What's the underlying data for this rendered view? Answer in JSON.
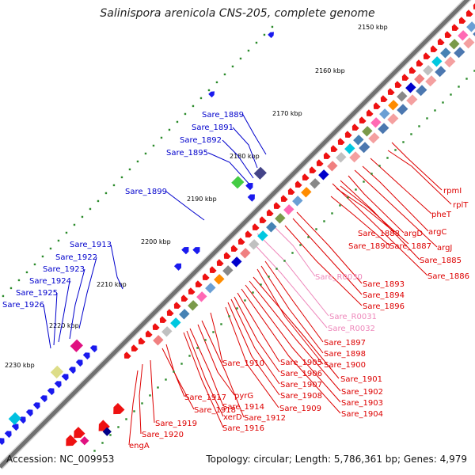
{
  "title": "Salinispora arenicola CNS-205, complete genome",
  "footer": {
    "accession": "Accession: NC_009953",
    "summary": "Topology: circular; Length: 5,786,361 bp; Genes: 4,979"
  },
  "colors": {
    "plus_label": "#0000cc",
    "minus_label": "#dd0000",
    "rna_label": "#ee88bb",
    "backbone": "#777777",
    "tick": "#228822"
  },
  "ticks": [
    "2150 kbp",
    "2160 kbp",
    "2170 kbp",
    "2180 kbp",
    "2190 kbp",
    "2200 kbp",
    "2210 kbp",
    "2220 kbp",
    "2230 kbp"
  ],
  "plus_labels": [
    "Sare_1889",
    "Sare_1891",
    "Sare_1892",
    "Sare_1895",
    "Sare_1899",
    "Sare_1913",
    "Sare_1922",
    "Sare_1923",
    "Sare_1924",
    "Sare_1925",
    "Sare_1926"
  ],
  "minus_labels": [
    "rpmI",
    "rplT",
    "pheT",
    "argC",
    "argJ",
    "argD",
    "Sare_1885",
    "Sare_1886",
    "Sare_1887",
    "Sare_1888",
    "Sare_1890",
    "Sare_1893",
    "Sare_1894",
    "Sare_1896",
    "Sare_1897",
    "Sare_1898",
    "Sare_1900",
    "Sare_1901",
    "Sare_1902",
    "Sare_1903",
    "Sare_1904",
    "Sare_1905",
    "Sare_1906",
    "Sare_1907",
    "Sare_1908",
    "Sare_1909",
    "Sare_1910",
    "Sare_1912",
    "Sare_1914",
    "Sare_1916",
    "pyrG",
    "xerD",
    "Sare_1917",
    "Sare_1918",
    "Sare_1919",
    "Sare_1920",
    "engA"
  ],
  "rna_labels": [
    "Sare_R0030",
    "Sare_R0031",
    "Sare_R0032"
  ]
}
